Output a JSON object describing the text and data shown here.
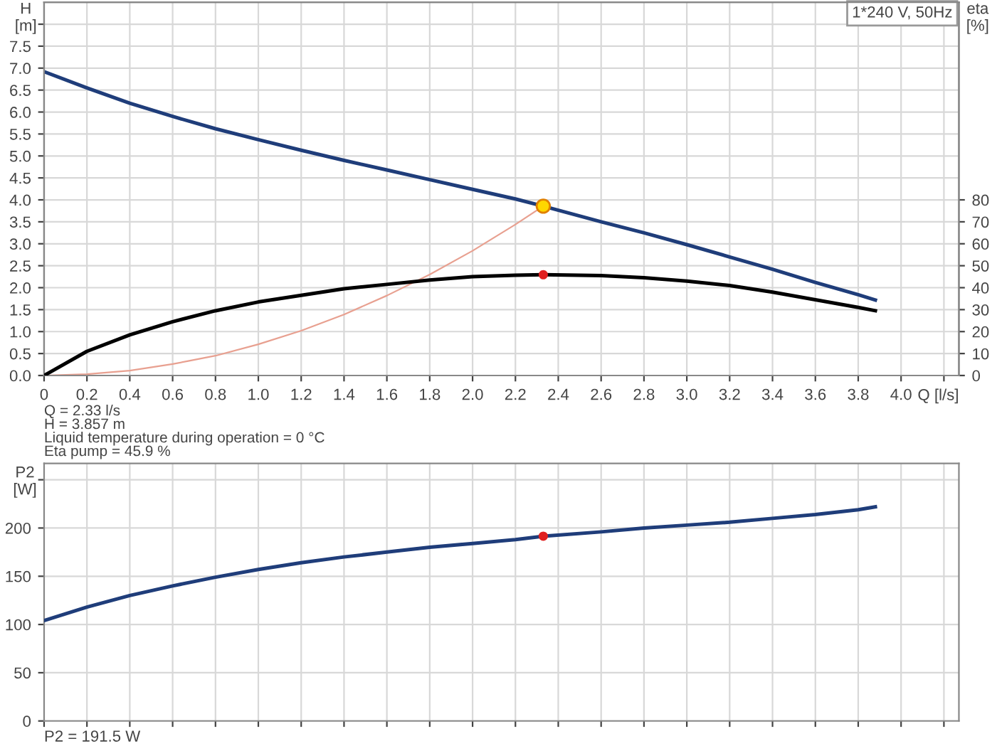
{
  "chart_data": [
    {
      "type": "line",
      "xlabel": "Q [l/s]",
      "ylabel": "H\n[m]",
      "y2label": "eta\n[%]",
      "xlim": [
        0,
        4.27
      ],
      "xticks": [
        0,
        0.2,
        0.4,
        0.6,
        0.8,
        {
          "value": 1,
          "label": "1.0"
        },
        1.2,
        1.4,
        1.6,
        1.8,
        {
          "value": 2,
          "label": "2.0"
        },
        2.2,
        2.4,
        2.6,
        2.8,
        {
          "value": 3,
          "label": "3.0"
        },
        3.2,
        3.4,
        3.6,
        3.8,
        {
          "value": 4,
          "label": "4.0"
        },
        {
          "value": 4.2,
          "label": null
        }
      ],
      "ylim": [
        0,
        8.5
      ],
      "yticks": [
        {
          "value": 0,
          "label": "0.0"
        },
        0.5,
        {
          "value": 1,
          "label": "1.0"
        },
        1.5,
        {
          "value": 2,
          "label": "2.0"
        },
        2.5,
        {
          "value": 3,
          "label": "3.0"
        },
        3.5,
        {
          "value": 4,
          "label": "4.0"
        },
        4.5,
        {
          "value": 5,
          "label": "5.0"
        },
        5.5,
        {
          "value": 6,
          "label": "6.0"
        },
        6.5,
        {
          "value": 7,
          "label": "7.0"
        },
        7.5,
        {
          "value": 8,
          "label": null
        }
      ],
      "y2lim": [
        0,
        170
      ],
      "y2ticks": [
        0,
        10,
        20,
        30,
        40,
        50,
        60,
        70,
        80
      ],
      "grid": true,
      "line_style": "solid",
      "series": [
        {
          "color": "#e8a090",
          "x": [
            0,
            0.2,
            0.4,
            0.6,
            0.8,
            1.0,
            1.2,
            1.4,
            1.6,
            1.8,
            2.0,
            2.2,
            2.33
          ],
          "values": [
            0,
            0.03,
            0.11,
            0.26,
            0.45,
            0.71,
            1.02,
            1.39,
            1.82,
            2.3,
            2.84,
            3.44,
            3.857
          ]
        },
        {
          "color": "#1f3d7a",
          "x": [
            0,
            0.2,
            0.4,
            0.6,
            0.8,
            1.0,
            1.2,
            1.4,
            1.6,
            1.8,
            2.0,
            2.2,
            2.33,
            2.6,
            2.8,
            3.0,
            3.2,
            3.4,
            3.6,
            3.8,
            3.88
          ],
          "values": [
            6.92,
            6.55,
            6.2,
            5.9,
            5.62,
            5.37,
            5.13,
            4.9,
            4.68,
            4.46,
            4.24,
            4.02,
            3.857,
            3.5,
            3.25,
            2.98,
            2.7,
            2.42,
            2.12,
            1.84,
            1.72
          ]
        },
        {
          "axis": "y2",
          "color": "#000000",
          "x": [
            0,
            0.2,
            0.4,
            0.6,
            0.8,
            1.0,
            1.2,
            1.4,
            1.6,
            1.8,
            2.0,
            2.2,
            2.33,
            2.6,
            2.8,
            3.0,
            3.2,
            3.4,
            3.6,
            3.8,
            3.88
          ],
          "values": [
            0,
            11,
            18.5,
            24.5,
            29.5,
            33.5,
            36.5,
            39.5,
            41.5,
            43.5,
            45,
            45.7,
            45.9,
            45.5,
            44.5,
            43,
            41,
            38,
            34.5,
            31,
            29.5
          ]
        },
        {
          "type": "scatter",
          "marker": "circle",
          "axis": "y2",
          "color": "#e02020",
          "x": [
            2.33
          ],
          "values": [
            45.9
          ]
        },
        {
          "type": "scatter",
          "marker": "circle",
          "color": "#ffd700",
          "x": [
            2.33
          ],
          "values": [
            3.857
          ]
        }
      ],
      "annotations": [
        "1*240 V, 50Hz",
        "Q = 2.33 l/s",
        "H = 3.857 m",
        "Liquid temperature during operation = 0 °C",
        "Eta pump = 45.9 %"
      ]
    },
    {
      "type": "line",
      "ylabel": "P2\n[W]",
      "tick_labels": "y",
      "xlim": [
        0,
        4.27
      ],
      "xticks": [
        0,
        0.2,
        0.4,
        0.6,
        0.8,
        1.0,
        1.2,
        1.4,
        1.6,
        1.8,
        2.0,
        2.2,
        2.4,
        2.6,
        2.8,
        3.0,
        3.2,
        3.4,
        3.6,
        3.8,
        4.0,
        4.2
      ],
      "ylim": [
        0,
        267
      ],
      "yticks": [
        0,
        50,
        100,
        150,
        200,
        {
          "value": 250,
          "label": null
        }
      ],
      "grid": true,
      "line_style": "solid",
      "series": [
        {
          "color": "#1f3d7a",
          "x": [
            0,
            0.2,
            0.4,
            0.6,
            0.8,
            1.0,
            1.2,
            1.4,
            1.6,
            1.8,
            2.0,
            2.2,
            2.33,
            2.6,
            2.8,
            3.0,
            3.2,
            3.4,
            3.6,
            3.8,
            3.88
          ],
          "values": [
            104,
            118,
            130,
            140,
            149,
            157,
            164,
            170,
            175,
            180,
            184,
            188,
            191.5,
            196,
            200,
            203,
            206,
            210,
            214,
            219,
            222
          ]
        },
        {
          "type": "scatter",
          "marker": "circle",
          "color": "#e02020",
          "x": [
            2.33
          ],
          "values": [
            191.5
          ]
        }
      ],
      "annotations": [
        "P2 = 191.5 W"
      ]
    }
  ]
}
